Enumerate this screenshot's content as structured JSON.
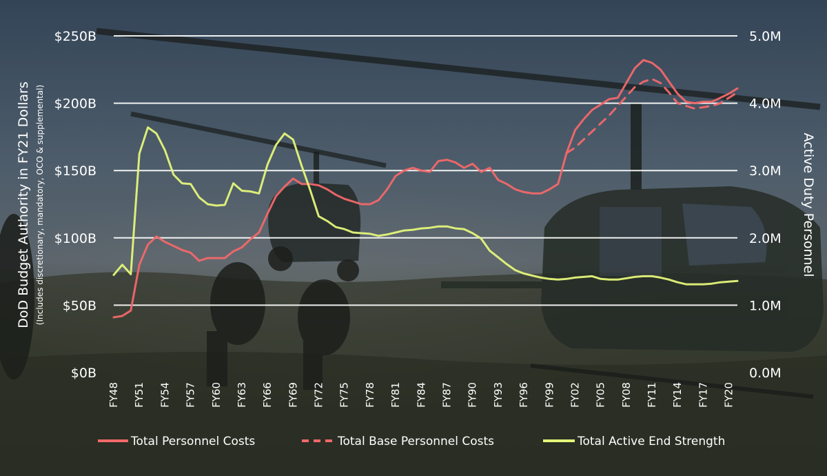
{
  "colors": {
    "personnel_costs": "#f2686a",
    "base_personnel_costs": "#f2686a",
    "end_strength": "#e4f57a"
  },
  "chart_data": {
    "type": "line",
    "title": "",
    "ylabel": "DoD Budget Authority in FY21 Dollars",
    "ylabel_sub": "(Includes discretionary, mandatory, OCO & supplemental)",
    "y2label": "Active Duty Personnel",
    "ylim": [
      0,
      250
    ],
    "y2lim": [
      0,
      5.0
    ],
    "yticks": [
      {
        "value": 0,
        "label": "$0B"
      },
      {
        "value": 50,
        "label": "$50B"
      },
      {
        "value": 100,
        "label": "$100B"
      },
      {
        "value": 150,
        "label": "$150B"
      },
      {
        "value": 200,
        "label": "$200B"
      },
      {
        "value": 250,
        "label": "$250B"
      }
    ],
    "y2ticks": [
      {
        "value": 0,
        "label": "0.0M"
      },
      {
        "value": 1,
        "label": "1.0M"
      },
      {
        "value": 2,
        "label": "2.0M"
      },
      {
        "value": 3,
        "label": "3.0M"
      },
      {
        "value": 4,
        "label": "4.0M"
      },
      {
        "value": 5,
        "label": "5.0M"
      }
    ],
    "grid": true,
    "legend": "bottom",
    "xlim": [
      1948,
      2021
    ],
    "xticks": [
      {
        "value": 1948,
        "label": "FY48"
      },
      {
        "value": 1951,
        "label": "FY51"
      },
      {
        "value": 1954,
        "label": "FY54"
      },
      {
        "value": 1957,
        "label": "FY57"
      },
      {
        "value": 1960,
        "label": "FY60"
      },
      {
        "value": 1963,
        "label": "FY63"
      },
      {
        "value": 1966,
        "label": "FY66"
      },
      {
        "value": 1969,
        "label": "FY69"
      },
      {
        "value": 1972,
        "label": "FY72"
      },
      {
        "value": 1975,
        "label": "FY75"
      },
      {
        "value": 1978,
        "label": "FY78"
      },
      {
        "value": 1981,
        "label": "FY81"
      },
      {
        "value": 1984,
        "label": "FY84"
      },
      {
        "value": 1987,
        "label": "FY87"
      },
      {
        "value": 1990,
        "label": "FY90"
      },
      {
        "value": 1993,
        "label": "FY93"
      },
      {
        "value": 1996,
        "label": "FY96"
      },
      {
        "value": 1999,
        "label": "FY99"
      },
      {
        "value": 2002,
        "label": "FY02"
      },
      {
        "value": 2005,
        "label": "FY05"
      },
      {
        "value": 2008,
        "label": "FY08"
      },
      {
        "value": 2011,
        "label": "FY11"
      },
      {
        "value": 2014,
        "label": "FY14"
      },
      {
        "value": 2017,
        "label": "FY17"
      },
      {
        "value": 2020,
        "label": "FY20"
      }
    ],
    "series": [
      {
        "name": "Total Personnel Costs",
        "axis": "left",
        "style": "solid",
        "x": [
          1948,
          1949,
          1950,
          1951,
          1952,
          1953,
          1954,
          1955,
          1956,
          1957,
          1958,
          1959,
          1960,
          1961,
          1962,
          1963,
          1964,
          1965,
          1966,
          1967,
          1968,
          1969,
          1970,
          1971,
          1972,
          1973,
          1974,
          1975,
          1976,
          1977,
          1978,
          1979,
          1980,
          1981,
          1982,
          1983,
          1984,
          1985,
          1986,
          1987,
          1988,
          1989,
          1990,
          1991,
          1992,
          1993,
          1994,
          1995,
          1996,
          1997,
          1998,
          1999,
          2000,
          2001,
          2002,
          2003,
          2004,
          2005,
          2006,
          2007,
          2008,
          2009,
          2010,
          2011,
          2012,
          2013,
          2014,
          2015,
          2016,
          2017,
          2018,
          2019,
          2020,
          2021
        ],
        "y": [
          41,
          42,
          46,
          80,
          95,
          101,
          97,
          94,
          91,
          89,
          83,
          85,
          85,
          85,
          90,
          93,
          99,
          104,
          118,
          131,
          138,
          144,
          140,
          140,
          139,
          136,
          132,
          129,
          127,
          125,
          125,
          128,
          136,
          146,
          150,
          152,
          150,
          149,
          157,
          158,
          156,
          152,
          155,
          149,
          152,
          143,
          140,
          136,
          134,
          133,
          133,
          136,
          140,
          163,
          180,
          188,
          195,
          199,
          203,
          204,
          215,
          226,
          232,
          230,
          225,
          216,
          207,
          201,
          200,
          201,
          201,
          204,
          207,
          211
        ]
      },
      {
        "name": "Total Base Personnel Costs",
        "axis": "left",
        "style": "dashed",
        "x": [
          2001,
          2002,
          2003,
          2004,
          2005,
          2006,
          2007,
          2008,
          2009,
          2010,
          2011,
          2012,
          2013,
          2014,
          2015,
          2016,
          2017,
          2018,
          2019,
          2020,
          2021
        ],
        "y": [
          163,
          167,
          173,
          179,
          185,
          191,
          198,
          205,
          212,
          216,
          218,
          215,
          208,
          200,
          198,
          196,
          197,
          198,
          200,
          204,
          208
        ]
      },
      {
        "name": "Total Active End Strength",
        "axis": "right",
        "style": "solid",
        "x": [
          1948,
          1949,
          1950,
          1951,
          1952,
          1953,
          1954,
          1955,
          1956,
          1957,
          1958,
          1959,
          1960,
          1961,
          1962,
          1963,
          1964,
          1965,
          1966,
          1967,
          1968,
          1969,
          1970,
          1971,
          1972,
          1973,
          1974,
          1975,
          1976,
          1977,
          1978,
          1979,
          1980,
          1981,
          1982,
          1983,
          1984,
          1985,
          1986,
          1987,
          1988,
          1989,
          1990,
          1991,
          1992,
          1993,
          1994,
          1995,
          1996,
          1997,
          1998,
          1999,
          2000,
          2001,
          2002,
          2003,
          2004,
          2005,
          2006,
          2007,
          2008,
          2009,
          2010,
          2011,
          2012,
          2013,
          2014,
          2015,
          2016,
          2017,
          2018,
          2019,
          2020,
          2021
        ],
        "y": [
          1.45,
          1.6,
          1.46,
          3.25,
          3.64,
          3.55,
          3.3,
          2.94,
          2.81,
          2.8,
          2.6,
          2.5,
          2.48,
          2.49,
          2.81,
          2.7,
          2.69,
          2.66,
          3.09,
          3.38,
          3.55,
          3.46,
          3.07,
          2.71,
          2.32,
          2.25,
          2.16,
          2.13,
          2.08,
          2.07,
          2.06,
          2.03,
          2.05,
          2.08,
          2.11,
          2.12,
          2.14,
          2.15,
          2.17,
          2.17,
          2.14,
          2.13,
          2.07,
          1.99,
          1.81,
          1.71,
          1.61,
          1.52,
          1.47,
          1.44,
          1.41,
          1.39,
          1.38,
          1.39,
          1.41,
          1.42,
          1.43,
          1.39,
          1.38,
          1.38,
          1.4,
          1.42,
          1.43,
          1.43,
          1.41,
          1.38,
          1.34,
          1.31,
          1.31,
          1.31,
          1.32,
          1.34,
          1.35,
          1.36
        ]
      }
    ]
  }
}
